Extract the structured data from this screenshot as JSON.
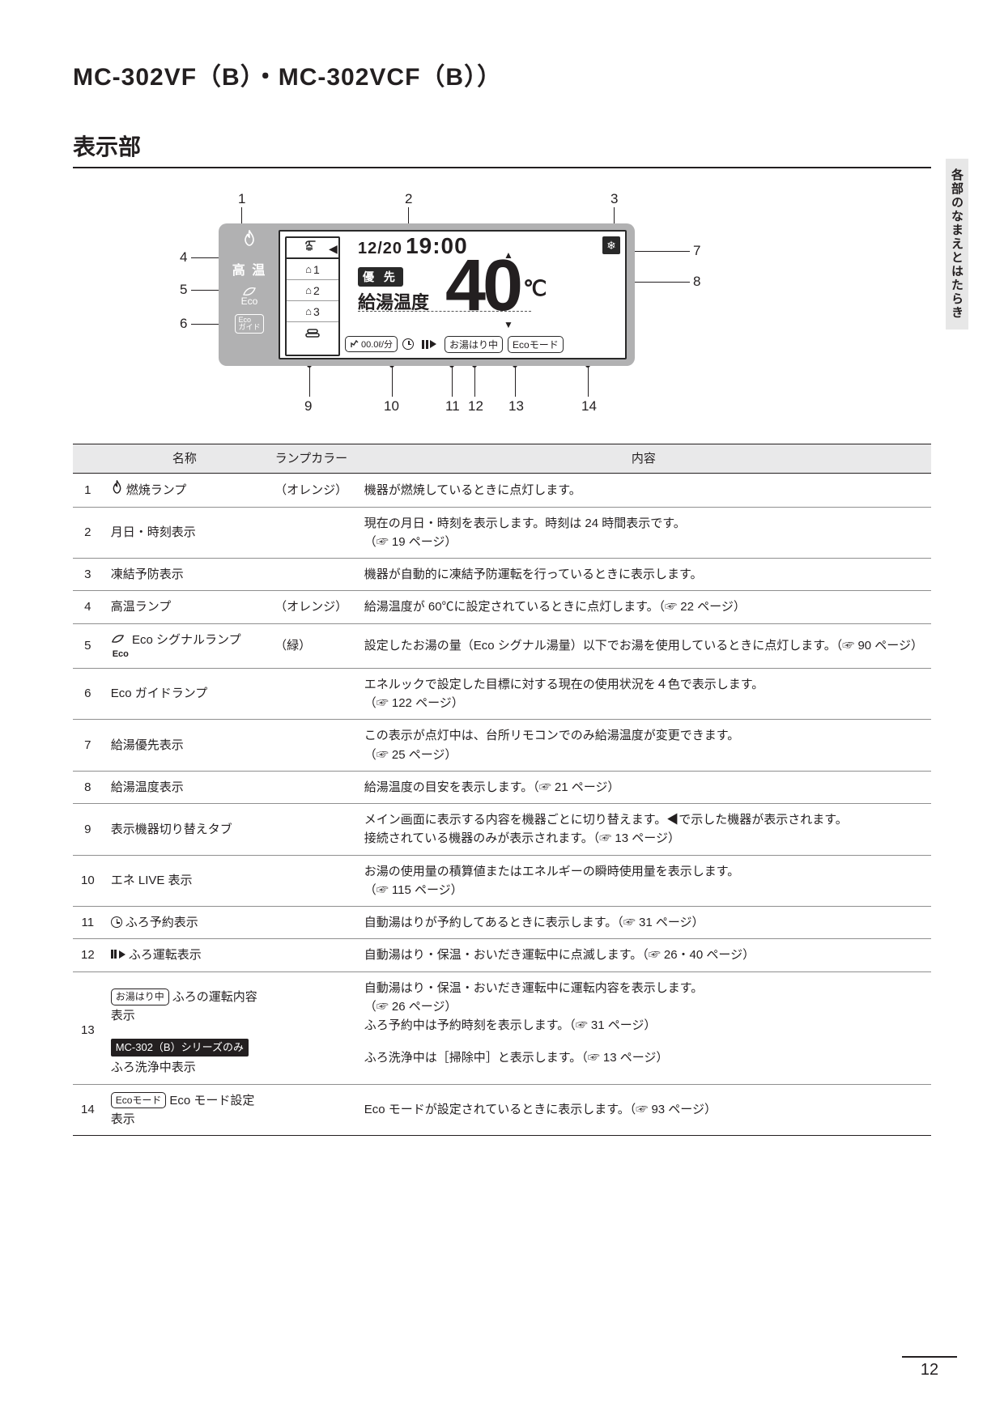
{
  "page": {
    "title": "MC-302VF（B）・MC-302VCF（B））",
    "section": "表示部",
    "side_tab": "各部のなまえとはたらき",
    "number": "12"
  },
  "diagram": {
    "panel_bg": "#b1b1b2",
    "screen_bg": "#ffffff",
    "left": {
      "hightemp": "高 温",
      "eco_label": "Eco",
      "eco_guide_top": "Eco",
      "eco_guide_bottom": "ガイド"
    },
    "screen": {
      "date": "12/20",
      "time": "19:00",
      "priority": "優 先",
      "temp_label": "給湯温度",
      "temp_value": "40",
      "temp_unit": "℃",
      "ene_value": "00.0ℓ/分",
      "bath_status": "お湯はり中",
      "eco_mode": "Ecoモード"
    },
    "callouts": {
      "1": "1",
      "2": "2",
      "3": "3",
      "4": "4",
      "5": "5",
      "6": "6",
      "7": "7",
      "8": "8",
      "9": "9",
      "10": "10",
      "11": "11",
      "12": "12",
      "13": "13",
      "14": "14"
    }
  },
  "table": {
    "headers": {
      "num": "",
      "name": "名称",
      "color": "ランプカラー",
      "desc": "内容"
    },
    "rows": [
      {
        "num": "1",
        "name_icon": "flame",
        "name": "燃焼ランプ",
        "color": "（オレンジ）",
        "desc": "機器が燃焼しているときに点灯します。"
      },
      {
        "num": "2",
        "name": "月日・時刻表示",
        "color": "",
        "desc": "現在の月日・時刻を表示します。時刻は 24 時間表示です。\n（☞ 19 ページ）"
      },
      {
        "num": "3",
        "name": "凍結予防表示",
        "color": "",
        "desc": "機器が自動的に凍結予防運転を行っているときに表示します。"
      },
      {
        "num": "4",
        "name": "高温ランプ",
        "color": "（オレンジ）",
        "desc": "給湯温度が 60℃に設定されているときに点灯します。（☞ 22 ページ）"
      },
      {
        "num": "5",
        "name_icon": "eco",
        "name": "Eco シグナルランプ",
        "color": "（緑）",
        "desc": "設定したお湯の量（Eco シグナル湯量）以下でお湯を使用しているときに点灯します。（☞ 90 ページ）"
      },
      {
        "num": "6",
        "name": "Eco ガイドランプ",
        "color": "",
        "desc": "エネルックで設定した目標に対する現在の使用状況を４色で表示します。\n（☞ 122 ページ）"
      },
      {
        "num": "7",
        "name": "給湯優先表示",
        "color": "",
        "desc": "この表示が点灯中は、台所リモコンでのみ給湯温度が変更できます。\n（☞ 25 ページ）"
      },
      {
        "num": "8",
        "name": "給湯温度表示",
        "color": "",
        "desc": "給湯温度の目安を表示します。（☞ 21 ページ）"
      },
      {
        "num": "9",
        "name": "表示機器切り替えタブ",
        "color": "",
        "desc": "メイン画面に表示する内容を機器ごとに切り替えます。◀で示した機器が表示されます。\n接続されている機器のみが表示されます。（☞ 13 ページ）"
      },
      {
        "num": "10",
        "name": "エネ LIVE 表示",
        "color": "",
        "desc": "お湯の使用量の積算値またはエネルギーの瞬時使用量を表示します。\n（☞ 115 ページ）"
      },
      {
        "num": "11",
        "name_icon": "clock",
        "name": "ふろ予約表示",
        "color": "",
        "desc": "自動湯はりが予約してあるときに表示します。（☞ 31 ページ）"
      },
      {
        "num": "12",
        "name_icon": "pauseplay",
        "name": "ふろ運転表示",
        "color": "",
        "desc": "自動湯はり・保温・おいだき運転中に点滅します。（☞ 26・40 ページ）"
      }
    ],
    "row13a": {
      "num": "13",
      "name_pill": "お湯はり中",
      "name": "ふろの運転内容表示",
      "desc": "自動湯はり・保温・おいだき運転中に運転内容を表示します。\n（☞ 26 ページ）\nふろ予約中は予約時刻を表示します。（☞ 31 ページ）"
    },
    "row13b": {
      "name_badge": "MC-302（B）シリーズのみ",
      "name": "ふろ洗浄中表示",
      "desc": "ふろ洗浄中は［掃除中］と表示します。（☞ 13 ページ）"
    },
    "row14": {
      "num": "14",
      "name_pill": "Ecoモード",
      "name": "Eco モード設定表示",
      "desc": "Eco モードが設定されているときに表示します。（☞ 93 ページ）"
    }
  }
}
